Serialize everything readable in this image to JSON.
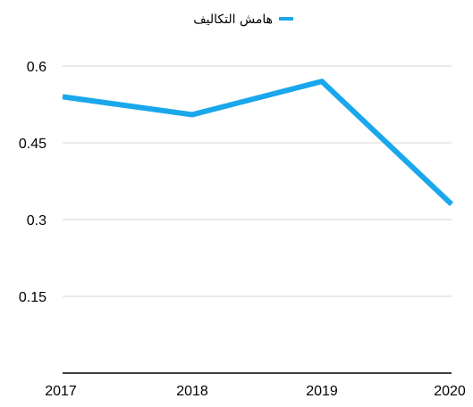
{
  "chart_data": {
    "type": "line",
    "categories": [
      "2017",
      "2018",
      "2019",
      "2020"
    ],
    "series": [
      {
        "name": "هامش التكاليف",
        "values": [
          0.54,
          0.505,
          0.57,
          0.33
        ],
        "color": "#1aa7ec"
      }
    ],
    "y_ticks": [
      "0.15",
      "0.3",
      "0.45",
      "0.6"
    ],
    "ylim": [
      0,
      0.6
    ],
    "grid": true,
    "legend_position": "top-center"
  }
}
